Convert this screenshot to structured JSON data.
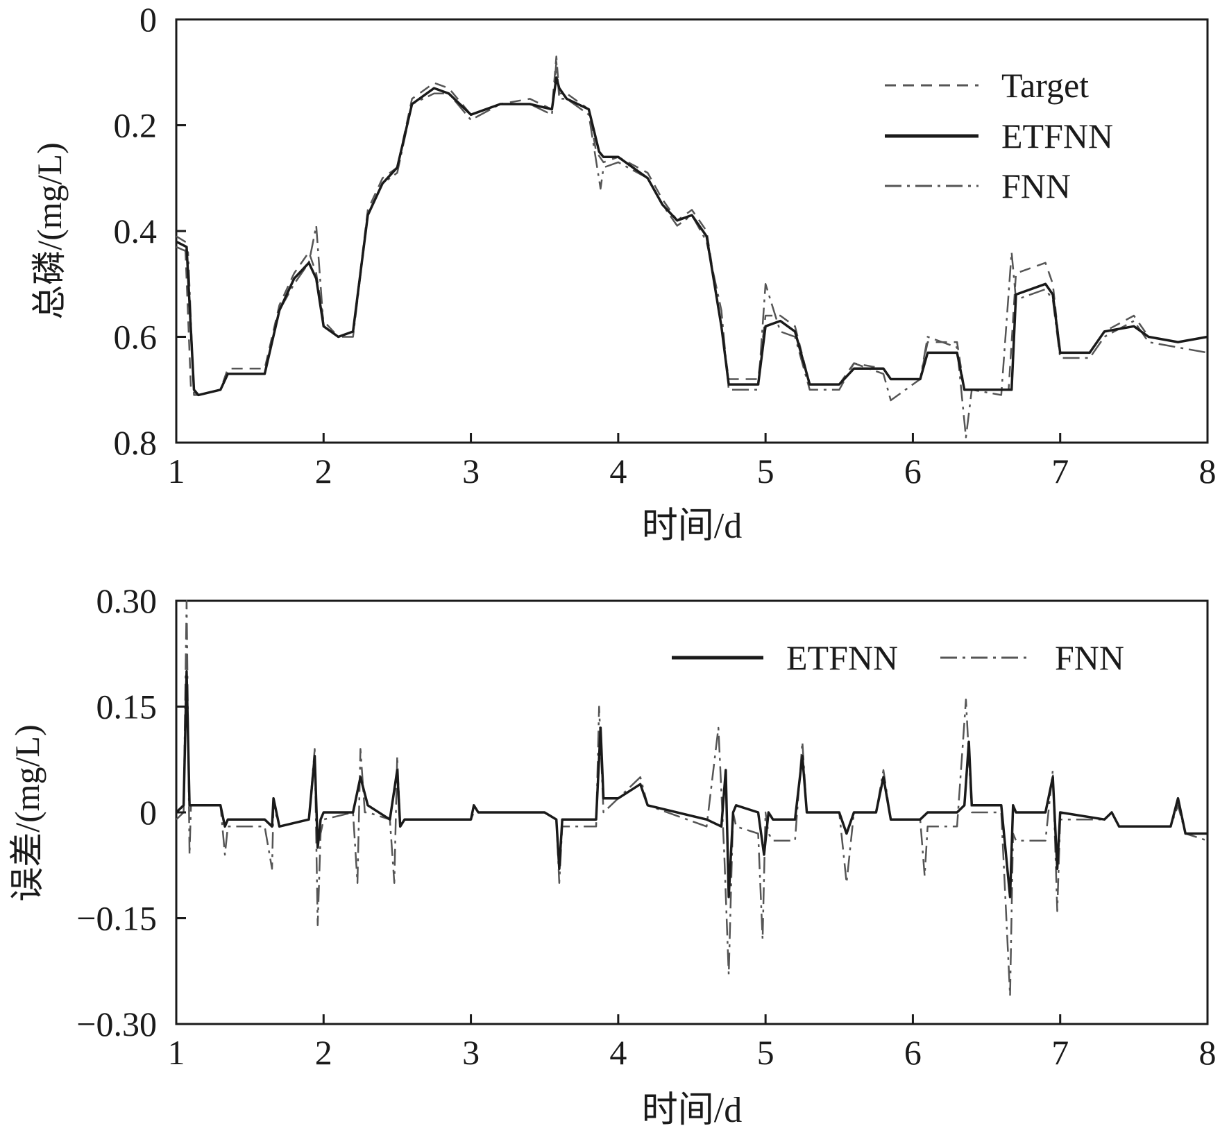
{
  "chart_data": [
    {
      "type": "line",
      "xlabel": "时间/d",
      "ylabel": "总磷/(mg/L)",
      "xlim": [
        1,
        8
      ],
      "ylim": [
        0,
        0.8
      ],
      "xticks": [
        "1",
        "2",
        "3",
        "4",
        "5",
        "6",
        "7",
        "8"
      ],
      "yticks": [
        "0",
        "0.2",
        "0.4",
        "0.6",
        "0.8"
      ],
      "legend_position": "top-right",
      "grid": false,
      "series": [
        {
          "name": "Target",
          "style": "dashed",
          "color": "#555555",
          "x": [
            1.0,
            1.06,
            1.1,
            1.15,
            1.3,
            1.35,
            1.6,
            1.7,
            1.8,
            1.9,
            1.95,
            2.0,
            2.1,
            2.2,
            2.3,
            2.4,
            2.5,
            2.6,
            2.75,
            2.85,
            3.0,
            3.2,
            3.4,
            3.55,
            3.58,
            3.6,
            3.65,
            3.8,
            3.85,
            3.9,
            4.0,
            4.2,
            4.3,
            4.4,
            4.5,
            4.6,
            4.7,
            4.75,
            4.8,
            4.95,
            5.0,
            5.1,
            5.2,
            5.3,
            5.5,
            5.6,
            5.8,
            5.85,
            6.05,
            6.1,
            6.3,
            6.35,
            6.4,
            6.6,
            6.65,
            6.7,
            6.9,
            6.95,
            7.0,
            7.2,
            7.3,
            7.5,
            7.6,
            7.8,
            8.0
          ],
          "y": [
            0.39,
            0.38,
            0.1,
            0.09,
            0.1,
            0.14,
            0.14,
            0.26,
            0.32,
            0.36,
            0.32,
            0.23,
            0.2,
            0.21,
            0.44,
            0.5,
            0.52,
            0.65,
            0.68,
            0.67,
            0.62,
            0.64,
            0.65,
            0.63,
            0.73,
            0.66,
            0.66,
            0.63,
            0.55,
            0.53,
            0.54,
            0.51,
            0.46,
            0.42,
            0.44,
            0.4,
            0.22,
            0.12,
            0.12,
            0.12,
            0.24,
            0.24,
            0.22,
            0.11,
            0.11,
            0.15,
            0.14,
            0.12,
            0.12,
            0.19,
            0.19,
            0.1,
            0.1,
            0.1,
            0.1,
            0.32,
            0.34,
            0.3,
            0.17,
            0.17,
            0.21,
            0.24,
            0.2,
            0.19,
            0.2
          ]
        },
        {
          "name": "ETFNN",
          "style": "solid",
          "color": "#1a1a1a",
          "x": [
            1.0,
            1.07,
            1.12,
            1.15,
            1.3,
            1.35,
            1.6,
            1.7,
            1.8,
            1.9,
            1.95,
            2.0,
            2.1,
            2.2,
            2.3,
            2.4,
            2.5,
            2.6,
            2.75,
            2.85,
            3.0,
            3.2,
            3.4,
            3.55,
            3.58,
            3.6,
            3.65,
            3.8,
            3.87,
            3.9,
            4.0,
            4.2,
            4.3,
            4.4,
            4.5,
            4.6,
            4.7,
            4.75,
            4.8,
            4.95,
            5.0,
            5.1,
            5.2,
            5.3,
            5.5,
            5.6,
            5.8,
            5.85,
            6.05,
            6.1,
            6.3,
            6.35,
            6.4,
            6.6,
            6.67,
            6.7,
            6.9,
            6.95,
            7.0,
            7.2,
            7.3,
            7.5,
            7.6,
            7.8,
            8.0
          ],
          "y": [
            0.38,
            0.37,
            0.1,
            0.09,
            0.1,
            0.13,
            0.13,
            0.25,
            0.31,
            0.34,
            0.31,
            0.22,
            0.2,
            0.21,
            0.43,
            0.49,
            0.52,
            0.64,
            0.67,
            0.66,
            0.62,
            0.64,
            0.64,
            0.63,
            0.69,
            0.67,
            0.65,
            0.63,
            0.55,
            0.54,
            0.54,
            0.5,
            0.45,
            0.42,
            0.43,
            0.39,
            0.22,
            0.11,
            0.11,
            0.11,
            0.22,
            0.23,
            0.21,
            0.11,
            0.11,
            0.14,
            0.14,
            0.12,
            0.12,
            0.17,
            0.17,
            0.1,
            0.1,
            0.1,
            0.1,
            0.28,
            0.3,
            0.28,
            0.17,
            0.17,
            0.21,
            0.22,
            0.2,
            0.19,
            0.2
          ]
        },
        {
          "name": "FNN",
          "style": "dash-dot",
          "color": "#555555",
          "x": [
            1.0,
            1.08,
            1.12,
            1.15,
            1.3,
            1.35,
            1.6,
            1.7,
            1.8,
            1.9,
            1.95,
            2.0,
            2.1,
            2.2,
            2.3,
            2.4,
            2.5,
            2.6,
            2.75,
            2.85,
            3.0,
            3.2,
            3.4,
            3.55,
            3.58,
            3.6,
            3.65,
            3.8,
            3.88,
            3.9,
            4.0,
            4.2,
            4.3,
            4.4,
            4.5,
            4.6,
            4.7,
            4.75,
            4.8,
            4.95,
            5.0,
            5.1,
            5.2,
            5.3,
            5.5,
            5.6,
            5.8,
            5.85,
            6.05,
            6.1,
            6.3,
            6.36,
            6.4,
            6.6,
            6.67,
            6.7,
            6.9,
            6.95,
            7.0,
            7.2,
            7.3,
            7.5,
            7.6,
            7.8,
            8.0
          ],
          "y": [
            0.37,
            0.36,
            0.09,
            0.09,
            0.1,
            0.13,
            0.13,
            0.25,
            0.3,
            0.34,
            0.41,
            0.22,
            0.2,
            0.2,
            0.43,
            0.49,
            0.51,
            0.64,
            0.66,
            0.66,
            0.61,
            0.64,
            0.64,
            0.62,
            0.72,
            0.65,
            0.65,
            0.62,
            0.48,
            0.52,
            0.53,
            0.5,
            0.45,
            0.41,
            0.43,
            0.38,
            0.25,
            0.1,
            0.1,
            0.1,
            0.3,
            0.21,
            0.2,
            0.1,
            0.1,
            0.15,
            0.13,
            0.08,
            0.12,
            0.2,
            0.18,
            0.01,
            0.1,
            0.09,
            0.36,
            0.27,
            0.29,
            0.27,
            0.16,
            0.16,
            0.2,
            0.23,
            0.19,
            0.18,
            0.17
          ]
        }
      ]
    },
    {
      "type": "line",
      "xlabel": "时间/d",
      "ylabel": "误差/(mg/L)",
      "xlim": [
        1,
        8
      ],
      "ylim": [
        -0.3,
        0.3
      ],
      "xticks": [
        "1",
        "2",
        "3",
        "4",
        "5",
        "6",
        "7",
        "8"
      ],
      "yticks": [
        "0.30",
        "0.15",
        "0",
        "−0.15",
        "−0.30"
      ],
      "legend_position": "top-right",
      "grid": false,
      "series": [
        {
          "name": "ETFNN",
          "style": "solid",
          "color": "#1a1a1a",
          "x": [
            1.0,
            1.05,
            1.07,
            1.09,
            1.1,
            1.3,
            1.33,
            1.35,
            1.6,
            1.65,
            1.66,
            1.7,
            1.9,
            1.94,
            1.96,
            1.98,
            2.0,
            2.2,
            2.25,
            2.3,
            2.45,
            2.5,
            2.52,
            2.55,
            2.8,
            3.0,
            3.02,
            3.05,
            3.5,
            3.58,
            3.6,
            3.62,
            3.85,
            3.88,
            3.9,
            4.0,
            4.15,
            4.2,
            4.6,
            4.7,
            4.73,
            4.75,
            4.78,
            4.8,
            4.95,
            4.99,
            5.02,
            5.05,
            5.2,
            5.25,
            5.28,
            5.3,
            5.5,
            5.55,
            5.6,
            5.75,
            5.8,
            5.85,
            6.05,
            6.1,
            6.3,
            6.35,
            6.38,
            6.4,
            6.6,
            6.66,
            6.68,
            6.7,
            6.9,
            6.95,
            6.98,
            7.0,
            7.3,
            7.35,
            7.4,
            7.75,
            7.8,
            7.85,
            8.0
          ],
          "y": [
            0.0,
            0.01,
            0.2,
            0.01,
            0.01,
            0.01,
            -0.02,
            -0.01,
            -0.01,
            -0.02,
            0.02,
            -0.02,
            -0.01,
            0.08,
            -0.05,
            -0.01,
            0.0,
            0.0,
            0.05,
            0.01,
            -0.01,
            0.06,
            -0.02,
            -0.01,
            -0.01,
            -0.01,
            0.01,
            0.0,
            0.0,
            -0.01,
            -0.08,
            -0.01,
            -0.01,
            0.12,
            0.02,
            0.02,
            0.04,
            0.01,
            -0.01,
            -0.02,
            0.06,
            -0.12,
            0.0,
            0.01,
            0.0,
            -0.06,
            0.0,
            -0.01,
            -0.01,
            0.08,
            0.0,
            0.0,
            0.0,
            -0.03,
            0.0,
            0.0,
            0.05,
            -0.01,
            -0.01,
            0.0,
            0.0,
            0.01,
            0.1,
            0.01,
            0.01,
            -0.12,
            0.01,
            0.0,
            0.0,
            0.05,
            -0.08,
            0.0,
            -0.01,
            0.0,
            -0.02,
            -0.02,
            0.02,
            -0.03,
            -0.03
          ]
        },
        {
          "name": "FNN",
          "style": "dash-dot",
          "color": "#555555",
          "x": [
            1.0,
            1.05,
            1.07,
            1.09,
            1.1,
            1.3,
            1.33,
            1.35,
            1.6,
            1.65,
            1.66,
            1.7,
            1.9,
            1.94,
            1.96,
            1.98,
            2.0,
            2.2,
            2.23,
            2.25,
            2.28,
            2.3,
            2.45,
            2.48,
            2.5,
            2.52,
            2.55,
            2.8,
            3.0,
            3.02,
            3.05,
            3.5,
            3.58,
            3.6,
            3.62,
            3.85,
            3.87,
            3.9,
            4.0,
            4.15,
            4.2,
            4.6,
            4.68,
            4.72,
            4.75,
            4.78,
            4.8,
            4.95,
            4.98,
            5.0,
            5.02,
            5.05,
            5.2,
            5.25,
            5.28,
            5.3,
            5.5,
            5.55,
            5.6,
            5.75,
            5.8,
            5.85,
            6.05,
            6.08,
            6.1,
            6.3,
            6.36,
            6.4,
            6.6,
            6.66,
            6.68,
            6.7,
            6.9,
            6.95,
            6.98,
            7.0,
            7.3,
            7.35,
            7.4,
            7.75,
            7.8,
            7.85,
            8.0
          ],
          "y": [
            -0.01,
            0.0,
            0.3,
            -0.06,
            0.01,
            0.01,
            -0.06,
            -0.02,
            -0.02,
            -0.08,
            0.01,
            -0.02,
            -0.01,
            0.09,
            -0.16,
            -0.03,
            -0.01,
            0.0,
            -0.1,
            0.09,
            0.0,
            0.0,
            -0.01,
            -0.1,
            0.08,
            -0.02,
            -0.01,
            -0.01,
            -0.01,
            0.0,
            0.0,
            0.0,
            -0.01,
            -0.1,
            -0.02,
            -0.02,
            0.15,
            0.0,
            0.02,
            0.05,
            0.01,
            -0.02,
            0.12,
            -0.06,
            -0.23,
            0.0,
            -0.02,
            -0.03,
            -0.18,
            0.0,
            -0.03,
            -0.04,
            -0.04,
            0.1,
            0.0,
            0.0,
            0.0,
            -0.1,
            0.0,
            0.0,
            0.06,
            -0.01,
            -0.01,
            -0.09,
            -0.02,
            -0.02,
            0.16,
            0.0,
            0.0,
            -0.26,
            -0.03,
            -0.04,
            -0.04,
            0.06,
            -0.14,
            -0.01,
            -0.01,
            0.0,
            -0.02,
            -0.02,
            0.01,
            -0.03,
            -0.04
          ]
        }
      ]
    }
  ]
}
